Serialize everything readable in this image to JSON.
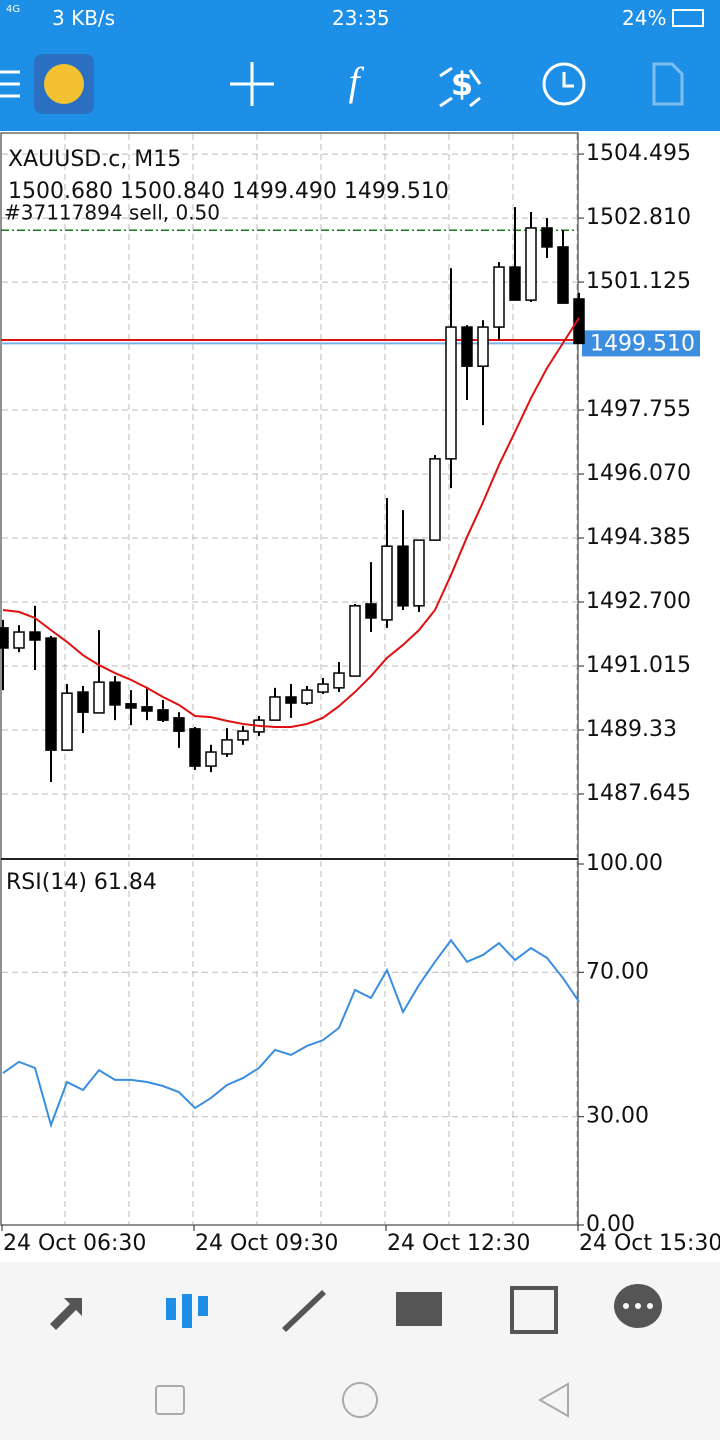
{
  "status_bar": {
    "network": "4G",
    "speed": "3 KB/s",
    "time": "23:35",
    "battery": "24%"
  },
  "chart_data": [
    {
      "type": "candlestick",
      "title": "XAUUSD.c, M15",
      "subtitle": "1500.680 1500.840 1499.490 1499.510",
      "annotation": "#37117894 sell, 0.50",
      "open": [
        1492.02,
        1491.49,
        1491.91,
        1491.75,
        1488.8,
        1490.33,
        1489.78,
        1490.59,
        1490.02,
        1489.94,
        1489.86,
        1489.65,
        1489.36,
        1488.38,
        1488.7,
        1489.07,
        1489.28,
        1489.59,
        1490.2,
        1490.04,
        1490.33,
        1490.44,
        1490.75,
        1492.65,
        1492.23,
        1494.17,
        1492.6,
        1494.33,
        1496.47,
        1499.94,
        1498.91,
        1499.94,
        1501.52,
        1500.65,
        1502.55,
        1502.05,
        1500.68
      ],
      "high": [
        1492.23,
        1492.09,
        1492.6,
        1491.81,
        1490.54,
        1490.49,
        1491.96,
        1490.75,
        1490.38,
        1490.44,
        1490.12,
        1489.8,
        1489.41,
        1488.94,
        1489.38,
        1489.44,
        1489.7,
        1490.44,
        1490.54,
        1490.49,
        1490.7,
        1491.12,
        1492.65,
        1493.75,
        1495.44,
        1495.12,
        1494.33,
        1496.57,
        1501.49,
        1499.99,
        1500.12,
        1501.65,
        1503.1,
        1502.97,
        1502.81,
        1502.49,
        1500.84
      ],
      "low": [
        1490.38,
        1491.38,
        1490.91,
        1487.96,
        1488.8,
        1489.25,
        1489.78,
        1489.59,
        1489.46,
        1489.59,
        1489.54,
        1488.86,
        1488.28,
        1488.22,
        1488.62,
        1488.94,
        1489.17,
        1489.59,
        1489.65,
        1489.99,
        1490.28,
        1490.33,
        1490.75,
        1491.91,
        1492.02,
        1492.49,
        1492.44,
        1494.33,
        1495.7,
        1498.02,
        1497.36,
        1499.6,
        1500.65,
        1500.6,
        1501.76,
        1500.57,
        1499.49
      ],
      "close": [
        1491.49,
        1491.91,
        1491.7,
        1488.8,
        1490.3,
        1489.8,
        1490.59,
        1489.99,
        1489.91,
        1489.83,
        1489.59,
        1489.3,
        1488.38,
        1488.75,
        1489.07,
        1489.3,
        1489.59,
        1490.2,
        1490.04,
        1490.38,
        1490.54,
        1490.83,
        1492.6,
        1492.28,
        1494.17,
        1492.6,
        1494.33,
        1496.47,
        1499.94,
        1498.91,
        1499.94,
        1501.52,
        1500.65,
        1502.55,
        1502.05,
        1500.57,
        1499.51
      ],
      "overlay": {
        "color": "#e01010",
        "values": [
          1492.49,
          1492.44,
          1492.28,
          1491.96,
          1491.65,
          1491.3,
          1491.04,
          1490.83,
          1490.65,
          1490.44,
          1490.2,
          1489.99,
          1489.7,
          1489.67,
          1489.57,
          1489.49,
          1489.44,
          1489.41,
          1489.41,
          1489.49,
          1489.65,
          1489.96,
          1490.33,
          1490.75,
          1491.23,
          1491.57,
          1491.96,
          1492.49,
          1493.41,
          1494.41,
          1495.33,
          1496.31,
          1497.18,
          1498.07,
          1498.86,
          1499.52,
          1500.18
        ]
      },
      "lines": [
        {
          "value": 1502.49,
          "color": "#1a7a1a",
          "style": "dashdot"
        },
        {
          "value": 1499.6,
          "color": "#e01010",
          "style": "solid"
        },
        {
          "value": 1499.51,
          "color": "#7ab2ea",
          "style": "solid",
          "label": "1499.510"
        }
      ],
      "ylim": [
        1485.96,
        1505.05
      ],
      "yticks": [
        1504.495,
        {
          "value": 1502.81,
          "label": "1502.810"
        },
        1501.125,
        1497.755,
        {
          "value": 1496.07,
          "label": "1496.070"
        },
        1494.385,
        {
          "value": 1492.7,
          "label": "1492.700"
        },
        1491.015,
        1489.33,
        1487.645
      ],
      "grid": true
    },
    {
      "type": "line",
      "title": "RSI(14) 61.84",
      "color": "#3a8ee0",
      "categories": [
        "24 Oct 06:30",
        null,
        null,
        null,
        null,
        null,
        null,
        null,
        null,
        null,
        null,
        null,
        "24 Oct 09:30",
        null,
        null,
        null,
        null,
        null,
        null,
        null,
        null,
        null,
        null,
        null,
        "24 Oct 12:30",
        null,
        null,
        null,
        null,
        null,
        null,
        null,
        null,
        null,
        null,
        null,
        "24 Oct 15:30"
      ],
      "values": [
        42.1,
        45.2,
        43.5,
        27.7,
        39.6,
        37.4,
        42.9,
        40.2,
        40.2,
        39.6,
        38.5,
        36.8,
        32.4,
        35.2,
        38.8,
        40.7,
        43.5,
        48.5,
        47.1,
        49.6,
        51.2,
        54.6,
        65.1,
        62.9,
        70.6,
        59.0,
        66.5,
        72.9,
        78.9,
        72.9,
        74.8,
        78.1,
        73.4,
        76.7,
        74.0,
        68.4,
        61.84
      ],
      "ylim": [
        0,
        100
      ],
      "yticks": [
        {
          "value": 100,
          "label": "100.00"
        },
        {
          "value": 70,
          "label": "70.00"
        },
        {
          "value": 30,
          "label": "30.00"
        },
        {
          "value": 0,
          "label": "0.00"
        }
      ],
      "grid": true
    }
  ]
}
